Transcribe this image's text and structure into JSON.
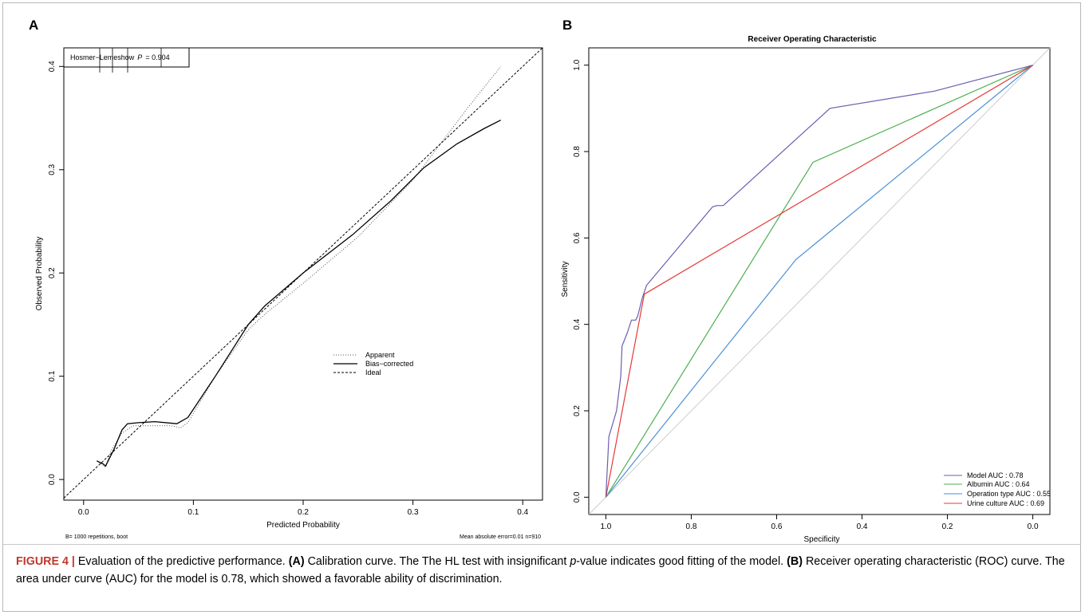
{
  "charts": [
    {
      "panel": "A",
      "chart_data": {
        "type": "line",
        "xlabel": "Predicted Probability",
        "ylabel": "Observed Probability",
        "xlim": [
          -0.018,
          0.418
        ],
        "ylim": [
          -0.02,
          0.418
        ],
        "xticks": [
          0.0,
          0.1,
          0.2,
          0.3,
          0.4
        ],
        "xtick_labels": [
          "0.0",
          "0.1",
          "0.2",
          "0.3",
          "0.4"
        ],
        "yticks": [
          0.0,
          0.1,
          0.2,
          0.3,
          0.4
        ],
        "ytick_labels": [
          "0.0",
          "0.1",
          "0.2",
          "0.3",
          "0.4"
        ],
        "annotation": "Hosmer−Lemeshow",
        "annotation_p_label": "P",
        "annotation_p_value": "=  0.904",
        "footnote_left": "B= 1000 repetitions, boot",
        "footnote_right": "Mean absolute error=0.01 n=910",
        "legend_position": "center-right",
        "series": [
          {
            "name": "Apparent",
            "style": "dotted",
            "x": [
              0.012,
              0.02,
              0.025,
              0.035,
              0.045,
              0.08,
              0.088,
              0.095,
              0.12,
              0.15,
              0.165,
              0.2,
              0.25,
              0.3,
              0.35,
              0.38
            ],
            "y": [
              0.018,
              0.012,
              0.028,
              0.045,
              0.052,
              0.052,
              0.05,
              0.055,
              0.1,
              0.145,
              0.16,
              0.19,
              0.235,
              0.29,
              0.36,
              0.4
            ]
          },
          {
            "name": "Bias−corrected",
            "style": "solid",
            "x": [
              0.012,
              0.018,
              0.02,
              0.028,
              0.035,
              0.04,
              0.05,
              0.065,
              0.085,
              0.095,
              0.12,
              0.15,
              0.165,
              0.2,
              0.245,
              0.28,
              0.31,
              0.34,
              0.365,
              0.38
            ],
            "y": [
              0.018,
              0.015,
              0.013,
              0.03,
              0.048,
              0.054,
              0.055,
              0.056,
              0.054,
              0.06,
              0.1,
              0.15,
              0.168,
              0.2,
              0.237,
              0.27,
              0.302,
              0.325,
              0.34,
              0.348
            ]
          },
          {
            "name": "Ideal",
            "style": "dashed",
            "x": [
              -0.018,
              0.418
            ],
            "y": [
              -0.018,
              0.418
            ]
          }
        ]
      }
    },
    {
      "panel": "B",
      "chart_data": {
        "type": "line",
        "title": "Receiver Operating Characteristic",
        "xlabel": "Specificity",
        "ylabel": "Sensitivity",
        "x_reversed": true,
        "xlim": [
          1.04,
          -0.04
        ],
        "ylim": [
          -0.04,
          1.04
        ],
        "xticks": [
          1.0,
          0.8,
          0.6,
          0.4,
          0.2,
          0.0
        ],
        "xtick_labels": [
          "1.0",
          "0.8",
          "0.6",
          "0.4",
          "0.2",
          "0.0"
        ],
        "yticks": [
          0.0,
          0.2,
          0.4,
          0.6,
          0.8,
          1.0
        ],
        "ytick_labels": [
          "0.0",
          "0.2",
          "0.4",
          "0.6",
          "0.8",
          "1.0"
        ],
        "legend_position": "bottom-right",
        "reference_line": {
          "x": [
            1.04,
            -0.04
          ],
          "y": [
            -0.04,
            1.04
          ],
          "color": "#cccccc"
        },
        "series": [
          {
            "name": "Model AUC : 0.78",
            "color": "#6a5fb0",
            "x": [
              1.0,
              0.993,
              0.975,
              0.965,
              0.962,
              0.95,
              0.94,
              0.93,
              0.925,
              0.915,
              0.905,
              0.75,
              0.74,
              0.725,
              0.475,
              0.23,
              0.0
            ],
            "y": [
              0.0,
              0.14,
              0.2,
              0.28,
              0.35,
              0.38,
              0.41,
              0.41,
              0.42,
              0.46,
              0.49,
              0.672,
              0.675,
              0.675,
              0.9,
              0.94,
              1.0
            ]
          },
          {
            "name": "Albumin AUC : 0.64",
            "color": "#4caf50",
            "x": [
              1.0,
              0.515,
              0.0
            ],
            "y": [
              0.0,
              0.775,
              1.0
            ]
          },
          {
            "name": "Operation type AUC : 0.55",
            "color": "#4a8fd4",
            "x": [
              1.0,
              0.555,
              0.0
            ],
            "y": [
              0.0,
              0.55,
              1.0
            ]
          },
          {
            "name": "Urine culture AUC : 0.69",
            "color": "#e53935",
            "x": [
              1.0,
              0.91,
              0.0
            ],
            "y": [
              0.0,
              0.47,
              1.0
            ]
          }
        ]
      }
    }
  ],
  "caption": {
    "figure_label": "FIGURE 4 |",
    "text_1": " Evaluation of the predictive performance. ",
    "label_a": "(A)",
    "text_2": " Calibration curve. The The HL test with insignificant ",
    "italic_p": "p",
    "text_3": "-value indicates good fitting of the model. ",
    "label_b": "(B)",
    "text_4": " Receiver operating characteristic (ROC) curve. The area under curve (AUC) for the model is 0.78, which showed a favorable ability of discrimination."
  }
}
